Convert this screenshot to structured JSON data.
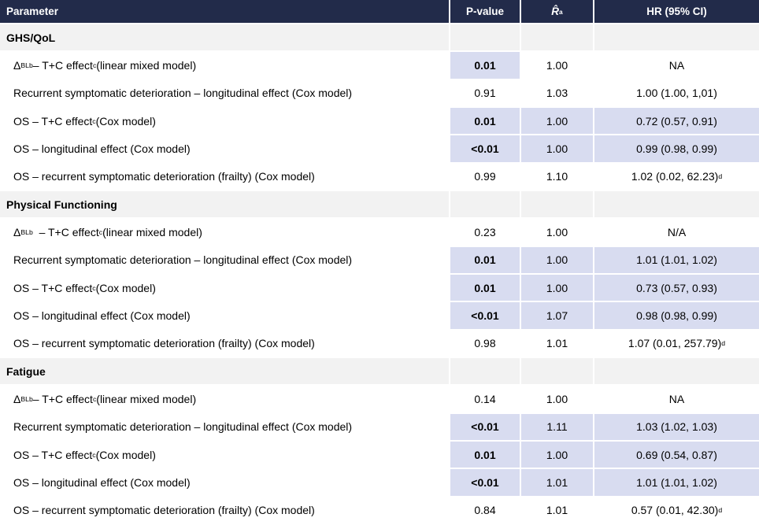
{
  "table": {
    "colors": {
      "header_bg": "#222B4A",
      "highlight": "#D8DCF0",
      "section_bg": "#F2F2F2"
    },
    "header": {
      "parameter": "Parameter",
      "pvalue": "P-value",
      "rhat_runs": [
        {
          "t": "R̂",
          "italic": true
        },
        {
          "t": "a",
          "sup": true
        }
      ],
      "hr": "HR (95% CI)"
    },
    "sections": [
      {
        "title": "GHS/QoL",
        "rows": [
          {
            "parameter": [
              {
                "t": "Δ"
              },
              {
                "t": "BL",
                "sub": true
              },
              {
                "t": "b",
                "sup": true
              },
              {
                "t": " – T+C effect"
              },
              {
                "t": "c",
                "sup": true
              },
              {
                "t": " (linear mixed model)"
              }
            ],
            "pvalue": "0.01",
            "rhat": "1.00",
            "hr": [
              {
                "t": "NA"
              }
            ],
            "highlight": "p"
          },
          {
            "parameter": [
              {
                "t": "Recurrent symptomatic deterioration – longitudinal effect (Cox model)"
              }
            ],
            "pvalue": "0.91",
            "rhat": "1.03",
            "hr": [
              {
                "t": "1.00 (1.00, 1,01)"
              }
            ],
            "highlight": "none"
          },
          {
            "parameter": [
              {
                "t": "OS – T+C effect"
              },
              {
                "t": "c",
                "sup": true
              },
              {
                "t": " (Cox model)"
              }
            ],
            "pvalue": "0.01",
            "rhat": "1.00",
            "hr": [
              {
                "t": "0.72 (0.57, 0.91)"
              }
            ],
            "highlight": "all"
          },
          {
            "parameter": [
              {
                "t": "OS – longitudinal effect (Cox model)"
              }
            ],
            "pvalue": "<0.01",
            "rhat": "1.00",
            "hr": [
              {
                "t": "0.99 (0.98, 0.99)"
              }
            ],
            "highlight": "all"
          },
          {
            "parameter": [
              {
                "t": "OS – recurrent symptomatic deterioration (frailty) (Cox model)"
              }
            ],
            "pvalue": "0.99",
            "rhat": "1.10",
            "hr": [
              {
                "t": "1.02 (0.02, 62.23)"
              },
              {
                "t": "d",
                "sup": true
              }
            ],
            "highlight": "none"
          }
        ]
      },
      {
        "title": "Physical Functioning",
        "rows": [
          {
            "parameter": [
              {
                "t": "Δ"
              },
              {
                "t": "BL",
                "sub": true
              },
              {
                "t": "b",
                "sup": true
              },
              {
                "t": "  – T+C effect"
              },
              {
                "t": "c",
                "sup": true
              },
              {
                "t": " (linear mixed model)"
              }
            ],
            "pvalue": "0.23",
            "rhat": "1.00",
            "hr": [
              {
                "t": "N/A"
              }
            ],
            "highlight": "none"
          },
          {
            "parameter": [
              {
                "t": "Recurrent symptomatic deterioration – longitudinal effect (Cox model)"
              }
            ],
            "pvalue": "0.01",
            "rhat": "1.00",
            "hr": [
              {
                "t": "1.01 (1.01, 1.02)"
              }
            ],
            "highlight": "all"
          },
          {
            "parameter": [
              {
                "t": "OS – T+C effect"
              },
              {
                "t": "c",
                "sup": true
              },
              {
                "t": " (Cox model)"
              }
            ],
            "pvalue": "0.01",
            "rhat": "1.00",
            "hr": [
              {
                "t": "0.73 (0.57, 0.93)"
              }
            ],
            "highlight": "all"
          },
          {
            "parameter": [
              {
                "t": "OS – longitudinal effect (Cox model)"
              }
            ],
            "pvalue": "<0.01",
            "rhat": "1.07",
            "hr": [
              {
                "t": "0.98 (0.98, 0.99)"
              }
            ],
            "highlight": "all"
          },
          {
            "parameter": [
              {
                "t": "OS – recurrent symptomatic deterioration (frailty) (Cox model)"
              }
            ],
            "pvalue": "0.98",
            "rhat": "1.01",
            "hr": [
              {
                "t": "1.07 (0.01, 257.79)"
              },
              {
                "t": "d",
                "sup": true
              }
            ],
            "highlight": "none"
          }
        ]
      },
      {
        "title": "Fatigue",
        "rows": [
          {
            "parameter": [
              {
                "t": "Δ"
              },
              {
                "t": "BL",
                "sub": true
              },
              {
                "t": "b",
                "sup": true
              },
              {
                "t": " – T+C effect"
              },
              {
                "t": "c",
                "sup": true
              },
              {
                "t": " (linear mixed model)"
              }
            ],
            "pvalue": "0.14",
            "rhat": "1.00",
            "hr": [
              {
                "t": "NA"
              }
            ],
            "highlight": "none"
          },
          {
            "parameter": [
              {
                "t": "Recurrent symptomatic deterioration – longitudinal effect (Cox model)"
              }
            ],
            "pvalue": "<0.01",
            "rhat": "1.11",
            "hr": [
              {
                "t": "1.03 (1.02, 1.03)"
              }
            ],
            "highlight": "all"
          },
          {
            "parameter": [
              {
                "t": "OS – T+C effect"
              },
              {
                "t": "c",
                "sup": true
              },
              {
                "t": " (Cox model)"
              }
            ],
            "pvalue": "0.01",
            "rhat": "1.00",
            "hr": [
              {
                "t": "0.69 (0.54, 0.87)"
              }
            ],
            "highlight": "all"
          },
          {
            "parameter": [
              {
                "t": "OS – longitudinal effect (Cox model)"
              }
            ],
            "pvalue": "<0.01",
            "rhat": "1.01",
            "hr": [
              {
                "t": "1.01 (1.01, 1.02)"
              }
            ],
            "highlight": "all"
          },
          {
            "parameter": [
              {
                "t": "OS – recurrent symptomatic deterioration (frailty) (Cox model)"
              }
            ],
            "pvalue": "0.84",
            "rhat": "1.01",
            "hr": [
              {
                "t": "0.57 (0.01, 42.30)"
              },
              {
                "t": "d",
                "sup": true
              }
            ],
            "highlight": "none"
          }
        ]
      }
    ]
  }
}
